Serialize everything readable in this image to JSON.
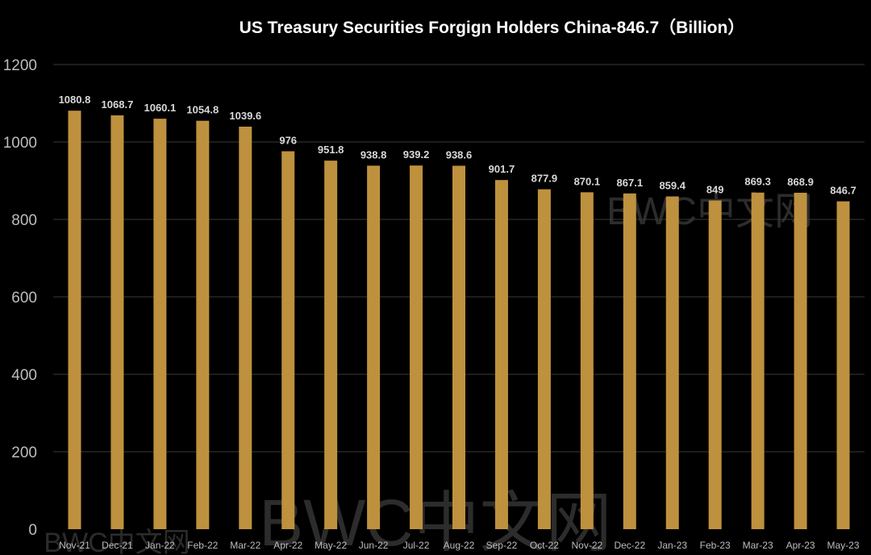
{
  "chart_data": {
    "type": "bar",
    "title": "US Treasury Securities Forgign Holders China-846.7（Billion）",
    "xlabel": "",
    "ylabel": "",
    "ylim": [
      0,
      1200
    ],
    "yticks": [
      0,
      200,
      400,
      600,
      800,
      1000,
      1200
    ],
    "grid": true,
    "categories": [
      "Nov-21",
      "Dec-21",
      "Jan-22",
      "Feb-22",
      "Mar-22",
      "Apr-22",
      "May-22",
      "Jun-22",
      "Jul-22",
      "Aug-22",
      "Sep-22",
      "Oct-22",
      "Nov-22",
      "Dec-22",
      "Jan-23",
      "Feb-23",
      "Mar-23",
      "Apr-23",
      "May-23"
    ],
    "values": [
      1080.8,
      1068.7,
      1060.1,
      1054.8,
      1039.6,
      976,
      951.8,
      938.8,
      939.2,
      938.6,
      901.7,
      877.9,
      870.1,
      867.1,
      859.4,
      849,
      869.3,
      868.9,
      846.7
    ],
    "value_labels": [
      "1080.8",
      "1068.7",
      "1060.1",
      "1054.8",
      "1039.6",
      "976",
      "951.8",
      "938.8",
      "939.2",
      "938.6",
      "901.7",
      "877.9",
      "870.1",
      "867.1",
      "859.4",
      "849",
      "869.3",
      "868.9",
      "846.7"
    ],
    "watermark": "BWC中文网",
    "colors": {
      "background": "#000000",
      "bar": "#BE913F",
      "grid": "#3a3a3a",
      "title": "#FFFFFF",
      "tick_label": "#BDBDBD",
      "value_label": "#D9D9D9",
      "watermark": "#2c2c2c"
    }
  }
}
